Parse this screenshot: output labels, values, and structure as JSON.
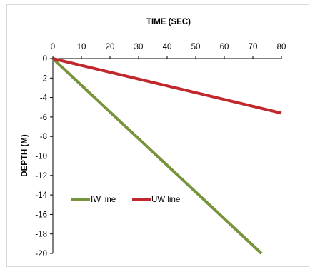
{
  "chart_data": {
    "type": "line",
    "title": "",
    "xlabel": "TIME (SEC)",
    "ylabel": "DEPTH (M)",
    "xlim": [
      0,
      80
    ],
    "ylim": [
      -20,
      0
    ],
    "x_axis_position": "top",
    "x_ticks": [
      0,
      10,
      20,
      30,
      40,
      50,
      60,
      70,
      80
    ],
    "y_ticks": [
      0,
      -2,
      -4,
      -6,
      -8,
      -10,
      -12,
      -14,
      -16,
      -18,
      -20
    ],
    "grid": false,
    "legend_position": "bottom-left (inside plot)",
    "series": [
      {
        "name": "IW line",
        "color": "#77933c",
        "x": [
          0,
          73
        ],
        "y": [
          0,
          -20
        ]
      },
      {
        "name": "UW line",
        "color": "#c0282d",
        "x": [
          0,
          80
        ],
        "y": [
          0,
          -5.6
        ]
      }
    ]
  }
}
